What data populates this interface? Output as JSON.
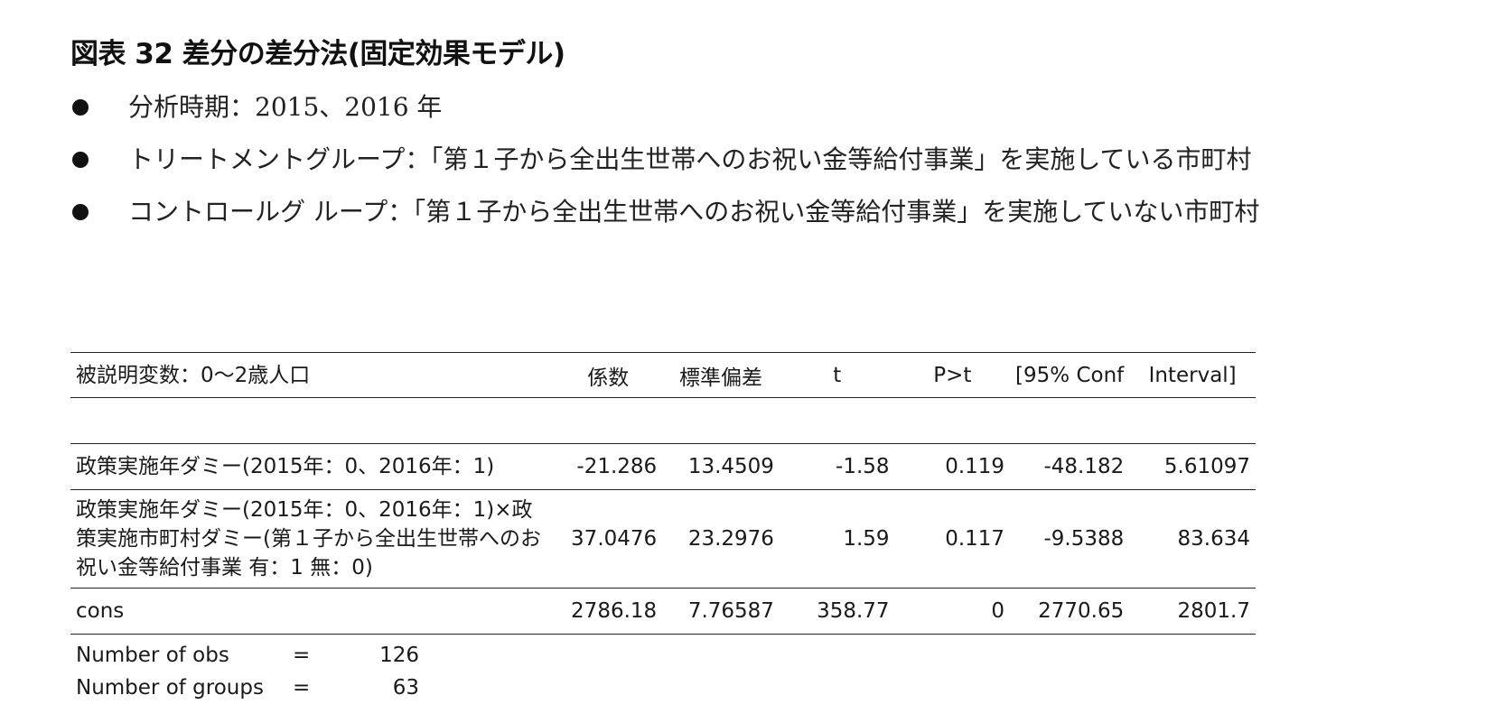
{
  "title": "図表 32 差分の差分法(固定効果モデル)",
  "bullets": [
    "分析時期：2015、2016 年",
    "トリートメントグループ：「第１子から全出生世帯へのお祝い金等給付事業」を実施している市町村",
    "コントロールグ ループ：「第１子から全出生世帯へのお祝い金等給付事業」を実施していない市町村"
  ],
  "table": {
    "headers": [
      "被説明変数：0～2歳人口",
      "係数",
      "標準偏差",
      "t",
      "P>t",
      "[95% Conf",
      "Interval]"
    ],
    "rows": [
      [
        "政策実施年ダミー(2015年：0、2016年：1)",
        "-21.286",
        "13.4509",
        "-1.58",
        "0.119",
        "-48.182",
        "5.61097"
      ],
      [
        "政策実施年ダミー(2015年：0、2016年：1)×政策実施市町村ダミー(第１子から全出生世帯へのお祝い金等給付事業 有：1 無：0)",
        "37.0476",
        "23.2976",
        "1.59",
        "0.117",
        "-9.5388",
        "83.634"
      ],
      [
        "cons",
        "2786.18",
        "7.76587",
        "358.77",
        "0",
        "2770.65",
        "2801.7"
      ]
    ]
  },
  "stats": [
    {
      "label": "Number of obs",
      "eq": "=",
      "value": "126"
    },
    {
      "label": "Number of groups",
      "eq": "=",
      "value": "63"
    }
  ]
}
